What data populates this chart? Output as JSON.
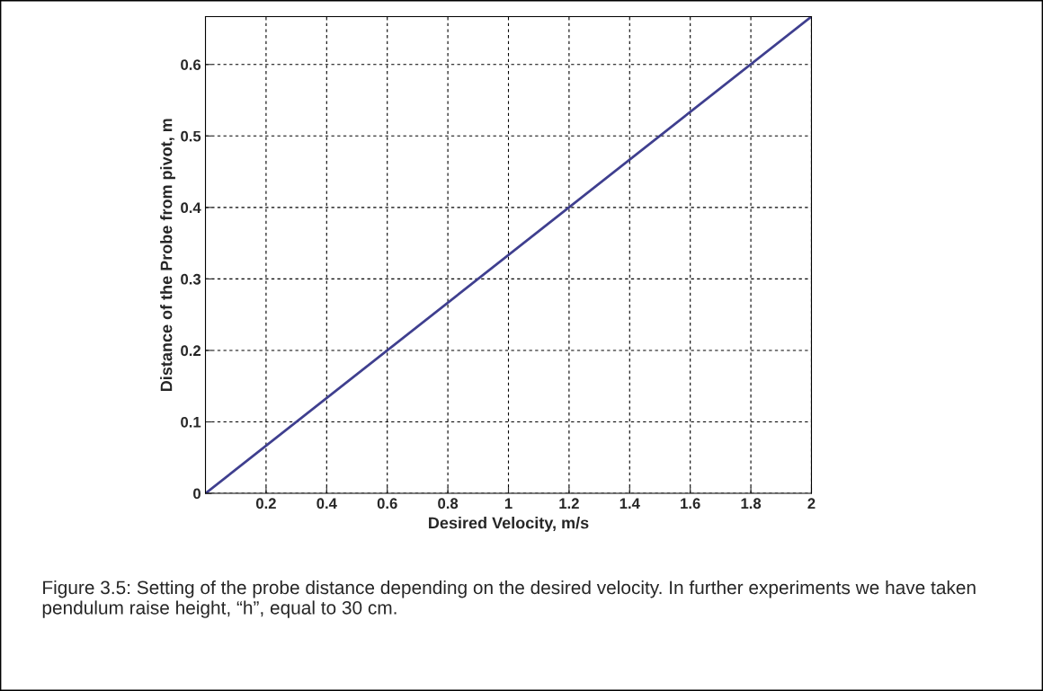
{
  "chart_data": {
    "type": "line",
    "xlabel": "Desired Velocity, m/s",
    "ylabel": "Distance of the Probe from pivot, m",
    "x": [
      0,
      2
    ],
    "series": [
      {
        "color": "#3f3f8f",
        "values": [
          0,
          0.667
        ]
      }
    ],
    "xlim": [
      0,
      2
    ],
    "xticks": [
      0.2,
      0.4,
      0.6,
      0.8,
      1,
      1.2,
      1.4,
      1.6,
      1.8,
      2
    ],
    "ylim": [
      0,
      0.667
    ],
    "yticks": [
      0,
      0.1,
      0.2,
      0.3,
      0.4,
      0.5,
      0.6
    ],
    "grid": true,
    "line_style": "solid",
    "marker": "none",
    "annotations": [
      "Figure 3.5: Setting of the probe distance depending on the desired velocity. In further experiments we have taken pendulum raise height, “h”, equal to 30 cm."
    ]
  }
}
